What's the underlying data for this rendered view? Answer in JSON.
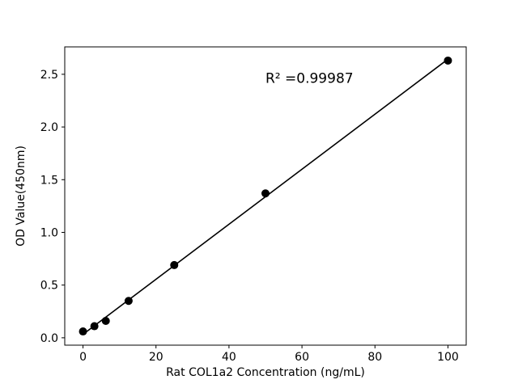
{
  "chart_data": {
    "type": "scatter",
    "title": "",
    "annotation": {
      "text": "R² =0.99987",
      "x": 50,
      "y": 2.42
    },
    "xlabel": "Rat COL1a2 Concentration (ng/mL)",
    "ylabel": "OD Value(450nm)",
    "x": [
      0,
      3.125,
      6.25,
      12.5,
      25,
      50,
      100
    ],
    "y": [
      0.06,
      0.11,
      0.16,
      0.35,
      0.69,
      1.37,
      2.63
    ],
    "xlim": [
      -5,
      105
    ],
    "ylim": [
      -0.07,
      2.76
    ],
    "xticks": [
      0,
      20,
      40,
      60,
      80,
      100
    ],
    "yticks": [
      0.0,
      0.5,
      1.0,
      1.5,
      2.0,
      2.5
    ],
    "fit_line": true,
    "grid": false,
    "legend": "none",
    "marker_color": "#000000",
    "line_color": "#000000",
    "background": "#ffffff"
  }
}
